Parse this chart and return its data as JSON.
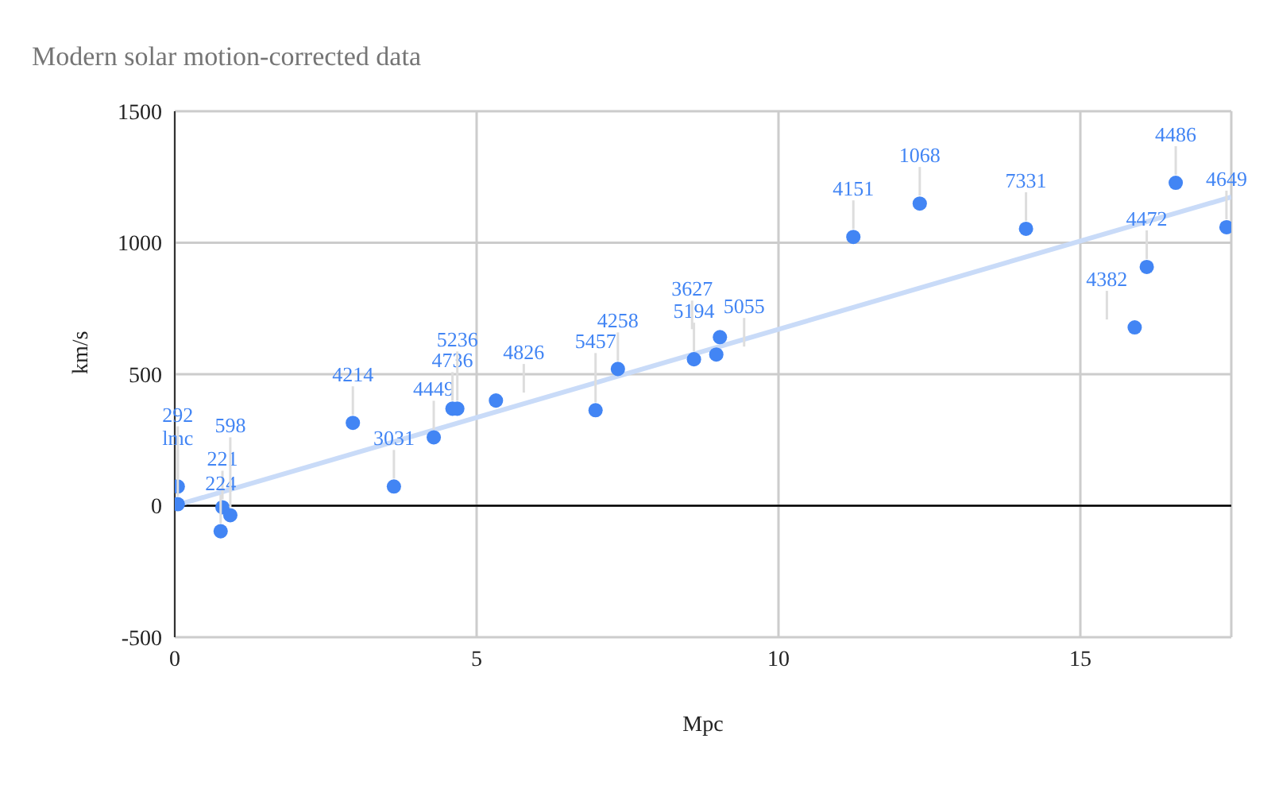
{
  "chart_data": {
    "type": "scatter",
    "title": "Modern solar motion-corrected data",
    "xlabel": "Mpc",
    "ylabel": "km/s",
    "xlim": [
      0,
      17.5
    ],
    "xticks": [
      0,
      5,
      10,
      15
    ],
    "ylim": [
      -500,
      1500
    ],
    "yticks": [
      -500,
      0,
      500,
      1000,
      1500
    ],
    "grid": true,
    "marker": "circle",
    "ref_lines": [
      {
        "axis": "y",
        "value": 0,
        "color": "#000000"
      }
    ],
    "series": [
      {
        "color": "#4285f4",
        "x": [
          0.05,
          0.05,
          0.79,
          0.76,
          0.92,
          2.95,
          3.63,
          4.29,
          4.6,
          4.68,
          5.32,
          6.97,
          7.34,
          8.6,
          8.97,
          9.03,
          11.24,
          12.34,
          14.1,
          16.1,
          15.9,
          16.58,
          17.42
        ],
        "values": [
          73,
          6,
          -6,
          -97,
          -36,
          315,
          73,
          260,
          369,
          369,
          400,
          363,
          520,
          557,
          575,
          641,
          1022,
          1149,
          1053,
          908,
          678,
          1228,
          1059
        ]
      },
      {
        "type": "line",
        "marker": "none",
        "color": "#c9dbf8",
        "x": [
          0,
          17.5
        ],
        "values": [
          0,
          1174
        ]
      }
    ],
    "annotations": [
      {
        "text": "lmc",
        "x": 0.05,
        "y": 73
      },
      {
        "text": "292",
        "x": 0.05,
        "y": 6
      },
      {
        "text": "221",
        "x": 0.79,
        "y": -6
      },
      {
        "text": "224",
        "x": 0.76,
        "y": -97
      },
      {
        "text": "598",
        "x": 0.92,
        "y": -36
      },
      {
        "text": "4214",
        "x": 2.95,
        "y": 315
      },
      {
        "text": "3031",
        "x": 3.63,
        "y": 73
      },
      {
        "text": "4449",
        "x": 4.29,
        "y": 260
      },
      {
        "text": "4736",
        "x": 4.6,
        "y": 369
      },
      {
        "text": "5236",
        "x": 4.68,
        "y": 369
      },
      {
        "text": "4826",
        "x": 5.32,
        "y": 400
      },
      {
        "text": "5457",
        "x": 6.97,
        "y": 363
      },
      {
        "text": "4258",
        "x": 7.34,
        "y": 520
      },
      {
        "text": "5194",
        "x": 8.6,
        "y": 557
      },
      {
        "text": "5055",
        "x": 8.97,
        "y": 575
      },
      {
        "text": "3627",
        "x": 9.03,
        "y": 641
      },
      {
        "text": "4151",
        "x": 11.24,
        "y": 1022
      },
      {
        "text": "1068",
        "x": 12.34,
        "y": 1149
      },
      {
        "text": "7331",
        "x": 14.1,
        "y": 1053
      },
      {
        "text": "4472",
        "x": 16.1,
        "y": 908
      },
      {
        "text": "4382",
        "x": 15.9,
        "y": 678
      },
      {
        "text": "4486",
        "x": 16.58,
        "y": 1228
      },
      {
        "text": "4649",
        "x": 17.42,
        "y": 1059
      }
    ]
  }
}
